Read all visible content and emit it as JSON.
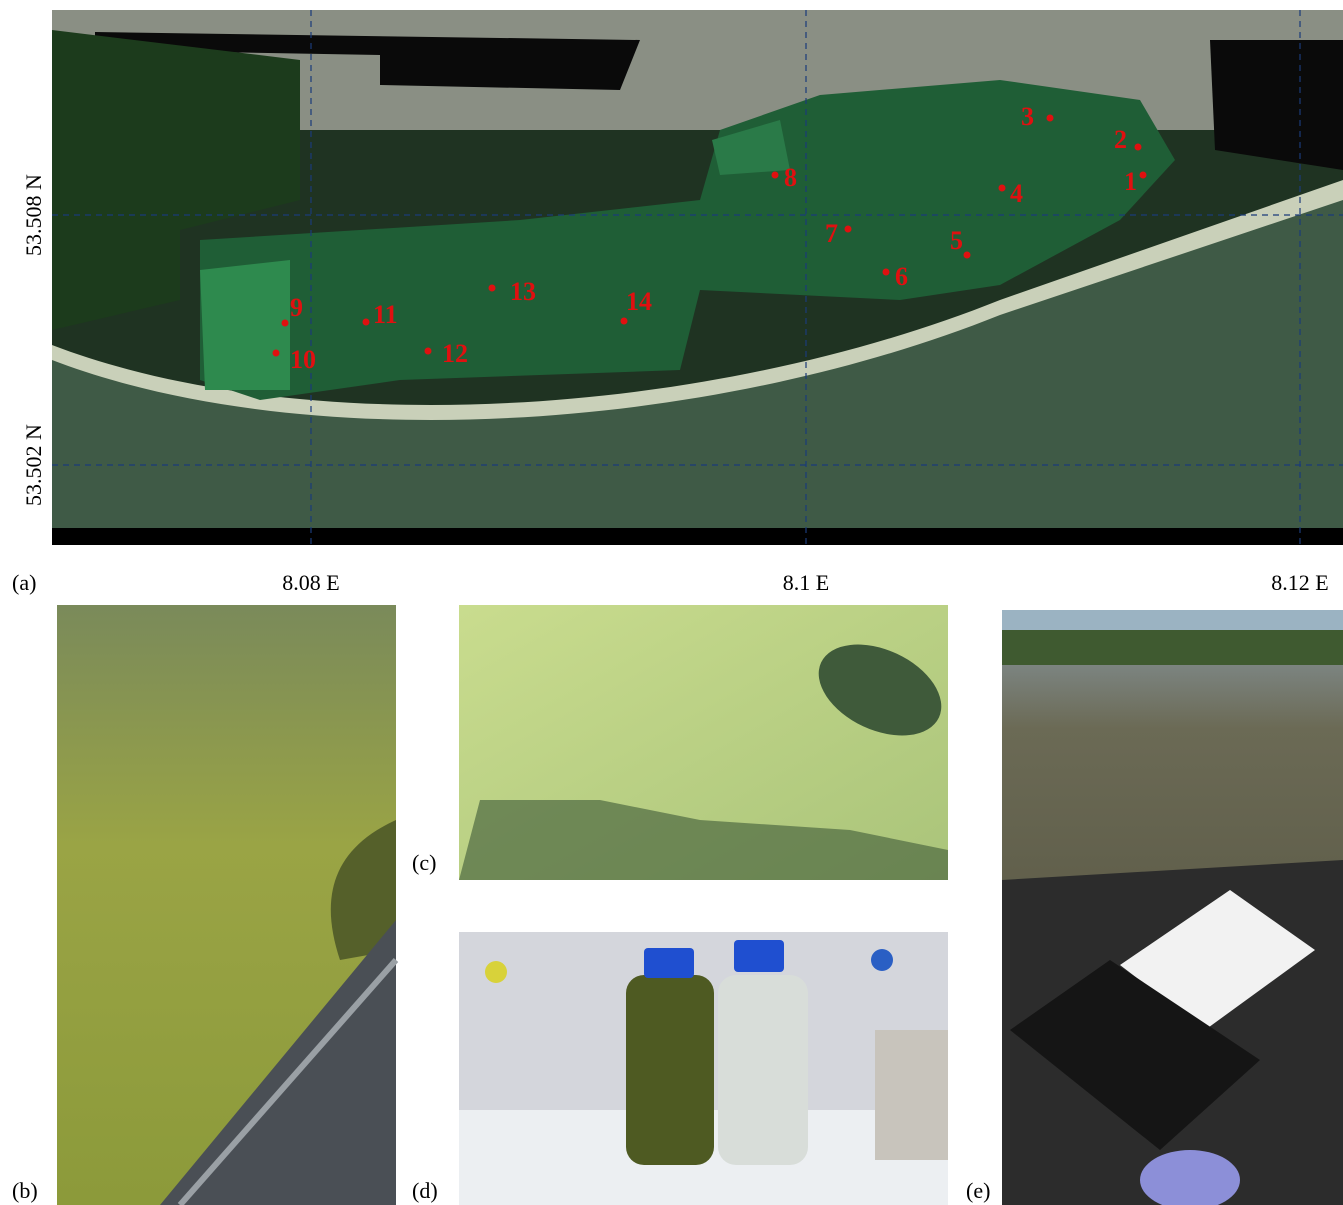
{
  "panels": {
    "a": "(a)",
    "b": "(b)",
    "c": "(c)",
    "d": "(d)",
    "e": "(e)"
  },
  "map": {
    "lat_labels": [
      "53.508 N",
      "53.502 N"
    ],
    "lon_labels": [
      "8.08 E",
      "8.1 E",
      "8.12 E"
    ],
    "stations": [
      "1",
      "2",
      "3",
      "4",
      "5",
      "6",
      "7",
      "8",
      "9",
      "10",
      "11",
      "12",
      "13",
      "14"
    ]
  }
}
